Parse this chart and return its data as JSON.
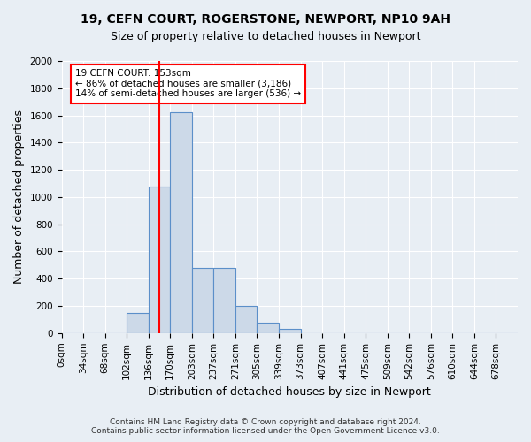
{
  "title1": "19, CEFN COURT, ROGERSTONE, NEWPORT, NP10 9AH",
  "title2": "Size of property relative to detached houses in Newport",
  "xlabel": "Distribution of detached houses by size in Newport",
  "ylabel": "Number of detached properties",
  "bar_categories": [
    "0sqm",
    "34sqm",
    "68sqm",
    "102sqm",
    "136sqm",
    "170sqm",
    "203sqm",
    "237sqm",
    "271sqm",
    "305sqm",
    "339sqm",
    "373sqm",
    "407sqm",
    "441sqm",
    "475sqm",
    "509sqm",
    "542sqm",
    "576sqm",
    "610sqm",
    "644sqm",
    "678sqm"
  ],
  "bar_heights": [
    0,
    0,
    0,
    150,
    1080,
    1620,
    480,
    480,
    200,
    80,
    30,
    0,
    0,
    0,
    0,
    0,
    0,
    0,
    0,
    0,
    0
  ],
  "bar_color": "#ccd9e8",
  "bar_edge_color": "#5b8fc9",
  "bar_edge_width": 0.8,
  "ylim": [
    0,
    2000
  ],
  "yticks": [
    0,
    200,
    400,
    600,
    800,
    1000,
    1200,
    1400,
    1600,
    1800,
    2000
  ],
  "annotation_text": "19 CEFN COURT: 153sqm\n← 86% of detached houses are smaller (3,186)\n14% of semi-detached houses are larger (536) →",
  "annotation_box_color": "white",
  "annotation_box_edge": "red",
  "footer1": "Contains HM Land Registry data © Crown copyright and database right 2024.",
  "footer2": "Contains public sector information licensed under the Open Government Licence v3.0.",
  "background_color": "#e8eef4",
  "plot_bg_color": "#e8eef4",
  "title_fontsize": 10,
  "subtitle_fontsize": 9,
  "tick_fontsize": 7.5,
  "ylabel_fontsize": 9,
  "xlabel_fontsize": 9,
  "footer_fontsize": 6.5,
  "annot_fontsize": 7.5
}
